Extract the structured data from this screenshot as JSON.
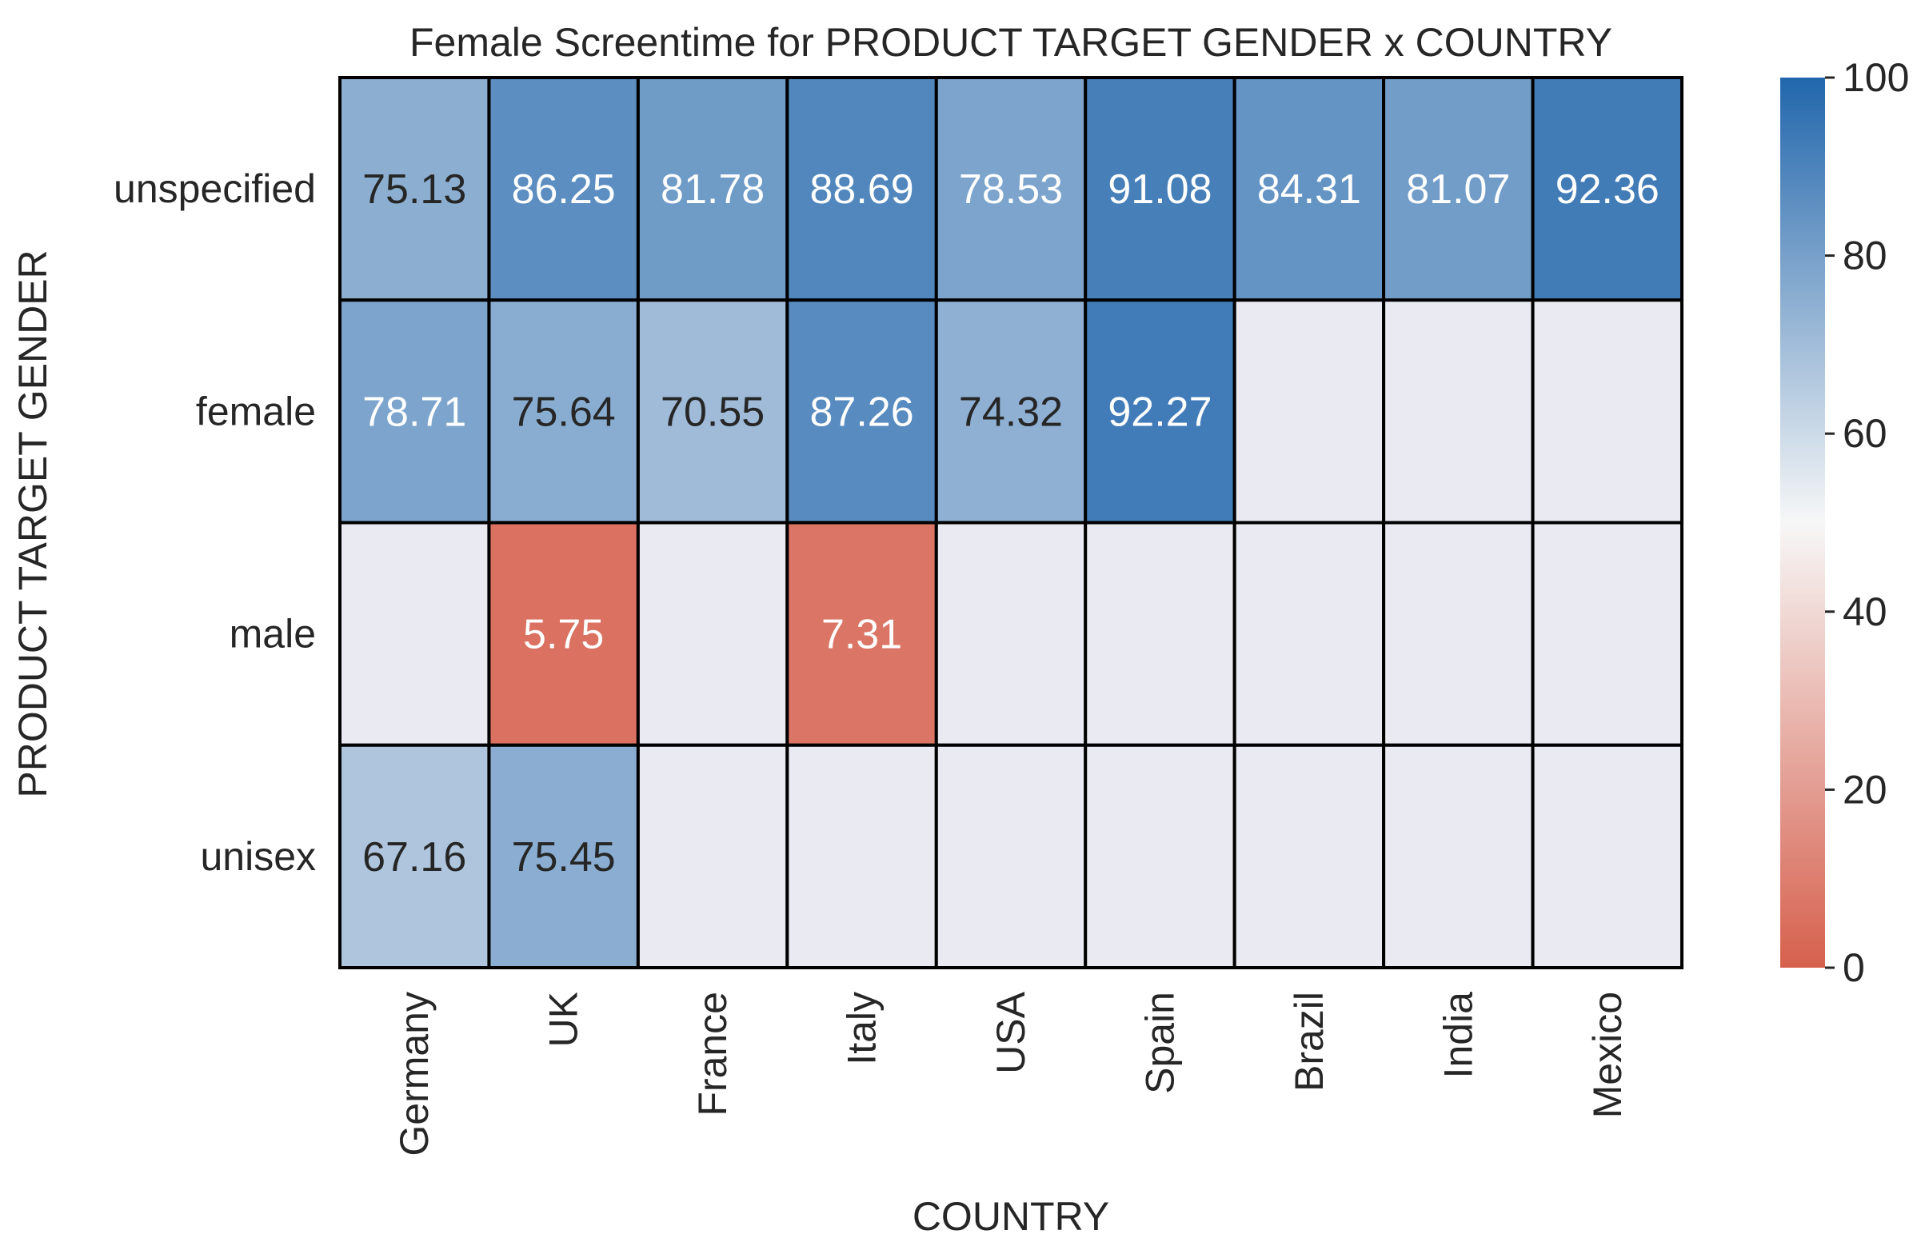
{
  "chart_data": {
    "type": "heatmap",
    "title": "Female Screentime for PRODUCT TARGET GENDER x COUNTRY",
    "xlabel": "COUNTRY",
    "ylabel": "PRODUCT TARGET GENDER",
    "x_categories": [
      "Germany",
      "UK",
      "France",
      "Italy",
      "USA",
      "Spain",
      "Brazil",
      "India",
      "Mexico"
    ],
    "y_categories": [
      "unspecified",
      "female",
      "male",
      "unisex"
    ],
    "values": [
      [
        75.13,
        86.25,
        81.78,
        88.69,
        78.53,
        91.08,
        84.31,
        81.07,
        92.36
      ],
      [
        78.71,
        75.64,
        70.55,
        87.26,
        74.32,
        92.27,
        null,
        null,
        null
      ],
      [
        null,
        5.75,
        null,
        7.31,
        null,
        null,
        null,
        null,
        null
      ],
      [
        67.16,
        75.45,
        null,
        null,
        null,
        null,
        null,
        null,
        null
      ]
    ],
    "value_labels": [
      [
        "75.13",
        "86.25",
        "81.78",
        "88.69",
        "78.53",
        "91.08",
        "84.31",
        "81.07",
        "92.36"
      ],
      [
        "78.71",
        "75.64",
        "70.55",
        "87.26",
        "74.32",
        "92.27",
        "",
        "",
        ""
      ],
      [
        "",
        "5.75",
        "",
        "7.31",
        "",
        "",
        "",
        "",
        ""
      ],
      [
        "67.16",
        "75.45",
        "",
        "",
        "",
        "",
        "",
        "",
        ""
      ]
    ],
    "colorbar": {
      "range": [
        0,
        100
      ],
      "ticks": [
        0,
        20,
        40,
        60,
        80,
        100
      ],
      "tick_labels": [
        "0",
        "20",
        "40",
        "60",
        "80",
        "100"
      ],
      "colormap": "diverging red-white-blue (center 50)"
    },
    "colors": {
      "low": "#d6604d",
      "mid": "#f7f7f7",
      "high": "#2166ac",
      "missing": "#eaeaf2",
      "cell_border": "#000000"
    }
  }
}
